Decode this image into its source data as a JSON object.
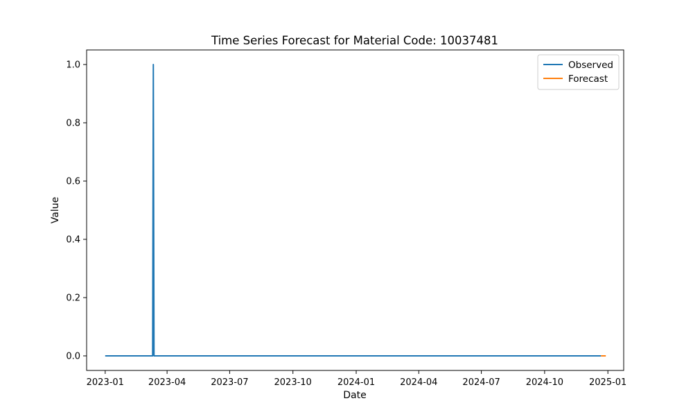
{
  "chart_data": {
    "type": "line",
    "title": "Time Series Forecast for Material Code: 10037481",
    "xlabel": "Date",
    "ylabel": "Value",
    "xlim": [
      "2022-12-05",
      "2025-01-24"
    ],
    "ylim": [
      -0.05,
      1.05
    ],
    "x_ticks": [
      "2023-01",
      "2023-04",
      "2023-07",
      "2023-10",
      "2024-01",
      "2024-04",
      "2024-07",
      "2024-10",
      "2025-01"
    ],
    "y_ticks": [
      "0.0",
      "0.2",
      "0.4",
      "0.6",
      "0.8",
      "1.0"
    ],
    "legend_position": "top-right",
    "grid": false,
    "series": [
      {
        "name": "Observed",
        "color": "#1f77b4",
        "x": [
          "2023-01-01",
          "2023-03-11",
          "2023-03-12",
          "2023-03-13",
          "2024-12-22"
        ],
        "y": [
          0,
          0,
          1,
          0,
          0
        ]
      },
      {
        "name": "Forecast",
        "color": "#ff7f0e",
        "x": [
          "2024-12-22",
          "2024-12-29"
        ],
        "y": [
          0,
          0
        ]
      }
    ]
  }
}
